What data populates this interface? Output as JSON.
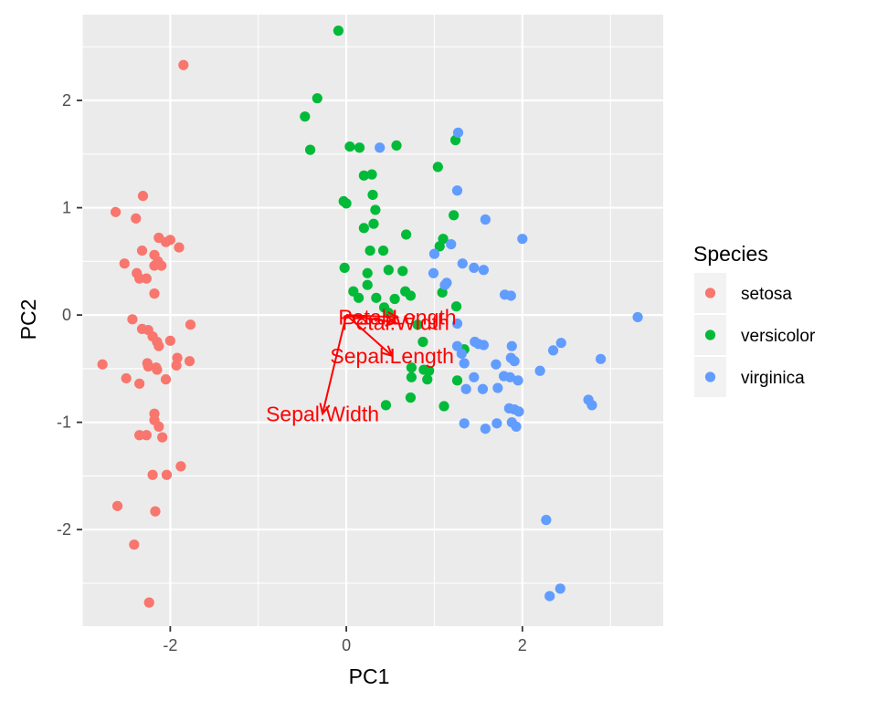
{
  "chart_data": {
    "type": "scatter",
    "xlabel": "PC1",
    "ylabel": "PC2",
    "xlim": [
      -3,
      3.6
    ],
    "ylim": [
      -2.9,
      2.8
    ],
    "x_ticks": [
      -2,
      0,
      2
    ],
    "y_ticks": [
      -2,
      -1,
      0,
      1,
      2
    ],
    "grid": true,
    "legend": {
      "title": "Species",
      "position": "right"
    },
    "series": [
      {
        "name": "setosa",
        "color": "#F8766D",
        "points": [
          [
            -1.85,
            2.33
          ],
          [
            -2.31,
            1.11
          ],
          [
            -2.62,
            0.96
          ],
          [
            -2.39,
            0.9
          ],
          [
            -2.13,
            0.72
          ],
          [
            -2.0,
            0.7
          ],
          [
            -2.05,
            0.68
          ],
          [
            -1.9,
            0.63
          ],
          [
            -2.32,
            0.6
          ],
          [
            -2.18,
            0.56
          ],
          [
            -2.14,
            0.5
          ],
          [
            -2.18,
            0.46
          ],
          [
            -2.1,
            0.46
          ],
          [
            -2.52,
            0.48
          ],
          [
            -2.38,
            0.39
          ],
          [
            -2.35,
            0.34
          ],
          [
            -2.27,
            0.34
          ],
          [
            -2.18,
            0.2
          ],
          [
            -2.43,
            -0.04
          ],
          [
            -2.32,
            -0.13
          ],
          [
            -2.25,
            -0.14
          ],
          [
            -2.2,
            -0.2
          ],
          [
            -2.15,
            -0.25
          ],
          [
            -2.13,
            -0.29
          ],
          [
            -1.77,
            -0.09
          ],
          [
            -2.26,
            -0.45
          ],
          [
            -2.25,
            -0.48
          ],
          [
            -2.16,
            -0.49
          ],
          [
            -2.15,
            -0.51
          ],
          [
            -2.0,
            -0.24
          ],
          [
            -1.92,
            -0.4
          ],
          [
            -1.93,
            -0.47
          ],
          [
            -1.78,
            -0.43
          ],
          [
            -2.77,
            -0.46
          ],
          [
            -2.5,
            -0.59
          ],
          [
            -2.35,
            -0.64
          ],
          [
            -2.05,
            -0.6
          ],
          [
            -2.18,
            -0.92
          ],
          [
            -2.18,
            -0.98
          ],
          [
            -2.13,
            -1.04
          ],
          [
            -2.35,
            -1.12
          ],
          [
            -2.27,
            -1.12
          ],
          [
            -2.09,
            -1.14
          ],
          [
            -1.88,
            -1.41
          ],
          [
            -2.2,
            -1.49
          ],
          [
            -2.04,
            -1.49
          ],
          [
            -2.6,
            -1.78
          ],
          [
            -2.17,
            -1.83
          ],
          [
            -2.41,
            -2.14
          ],
          [
            -2.24,
            -2.68
          ]
        ]
      },
      {
        "name": "versicolor",
        "color": "#00BA38",
        "points": [
          [
            -0.09,
            2.65
          ],
          [
            -0.33,
            2.02
          ],
          [
            -0.47,
            1.85
          ],
          [
            -0.41,
            1.54
          ],
          [
            0.57,
            1.58
          ],
          [
            0.04,
            1.57
          ],
          [
            0.15,
            1.56
          ],
          [
            1.24,
            1.63
          ],
          [
            0.2,
            1.3
          ],
          [
            0.29,
            1.31
          ],
          [
            1.04,
            1.38
          ],
          [
            0.3,
            1.12
          ],
          [
            -0.03,
            1.06
          ],
          [
            0.0,
            1.04
          ],
          [
            0.33,
            0.98
          ],
          [
            0.31,
            0.85
          ],
          [
            0.2,
            0.81
          ],
          [
            0.68,
            0.75
          ],
          [
            1.22,
            0.93
          ],
          [
            1.1,
            0.71
          ],
          [
            1.06,
            0.64
          ],
          [
            0.27,
            0.6
          ],
          [
            0.42,
            0.6
          ],
          [
            -0.02,
            0.44
          ],
          [
            0.48,
            0.42
          ],
          [
            0.64,
            0.41
          ],
          [
            0.24,
            0.39
          ],
          [
            0.24,
            0.28
          ],
          [
            0.08,
            0.22
          ],
          [
            0.14,
            0.16
          ],
          [
            0.34,
            0.16
          ],
          [
            0.55,
            0.15
          ],
          [
            0.67,
            0.22
          ],
          [
            0.73,
            0.18
          ],
          [
            1.09,
            0.21
          ],
          [
            1.25,
            0.08
          ],
          [
            0.43,
            0.07
          ],
          [
            0.48,
            0.02
          ],
          [
            0.81,
            -0.09
          ],
          [
            1.34,
            -0.32
          ],
          [
            0.87,
            -0.25
          ],
          [
            0.88,
            -0.51
          ],
          [
            0.74,
            -0.49
          ],
          [
            0.74,
            -0.58
          ],
          [
            1.26,
            -0.61
          ],
          [
            0.92,
            -0.6
          ],
          [
            0.94,
            -0.52
          ],
          [
            0.73,
            -0.77
          ],
          [
            1.11,
            -0.85
          ],
          [
            0.45,
            -0.84
          ]
        ]
      },
      {
        "name": "virginica",
        "color": "#619CFF",
        "points": [
          [
            1.27,
            1.7
          ],
          [
            0.38,
            1.56
          ],
          [
            1.26,
            1.16
          ],
          [
            1.58,
            0.89
          ],
          [
            2.0,
            0.71
          ],
          [
            1.19,
            0.66
          ],
          [
            1.0,
            0.57
          ],
          [
            0.99,
            0.39
          ],
          [
            1.14,
            0.3
          ],
          [
            1.12,
            0.28
          ],
          [
            1.32,
            0.48
          ],
          [
            1.45,
            0.44
          ],
          [
            1.56,
            0.42
          ],
          [
            1.8,
            0.19
          ],
          [
            1.87,
            0.18
          ],
          [
            1.26,
            -0.08
          ],
          [
            1.26,
            -0.29
          ],
          [
            1.31,
            -0.36
          ],
          [
            1.34,
            -0.45
          ],
          [
            1.46,
            -0.25
          ],
          [
            1.5,
            -0.27
          ],
          [
            1.56,
            -0.28
          ],
          [
            1.88,
            -0.29
          ],
          [
            1.87,
            -0.4
          ],
          [
            1.91,
            -0.43
          ],
          [
            1.7,
            -0.46
          ],
          [
            1.45,
            -0.58
          ],
          [
            1.86,
            -0.58
          ],
          [
            2.2,
            -0.52
          ],
          [
            2.35,
            -0.33
          ],
          [
            2.44,
            -0.26
          ],
          [
            2.89,
            -0.41
          ],
          [
            3.31,
            -0.02
          ],
          [
            1.79,
            -0.57
          ],
          [
            1.95,
            -0.61
          ],
          [
            1.36,
            -0.69
          ],
          [
            1.55,
            -0.69
          ],
          [
            1.72,
            -0.68
          ],
          [
            1.85,
            -0.87
          ],
          [
            1.91,
            -0.88
          ],
          [
            1.96,
            -0.9
          ],
          [
            1.88,
            -1.0
          ],
          [
            1.93,
            -1.04
          ],
          [
            1.34,
            -1.01
          ],
          [
            1.58,
            -1.06
          ],
          [
            1.71,
            -1.01
          ],
          [
            2.75,
            -0.79
          ],
          [
            2.79,
            -0.84
          ],
          [
            2.27,
            -1.91
          ],
          [
            2.43,
            -2.55
          ],
          [
            2.31,
            -2.62
          ]
        ]
      }
    ],
    "loadings": {
      "color": "#FF0000",
      "vectors": [
        {
          "label": "Sepal.Length",
          "x": 0.52,
          "y": -0.38
        },
        {
          "label": "Sepal.Width",
          "x": -0.27,
          "y": -0.92
        },
        {
          "label": "Petal.Length",
          "x": 0.58,
          "y": -0.02
        },
        {
          "label": "Petal.Width",
          "x": 0.56,
          "y": -0.07
        }
      ]
    }
  }
}
